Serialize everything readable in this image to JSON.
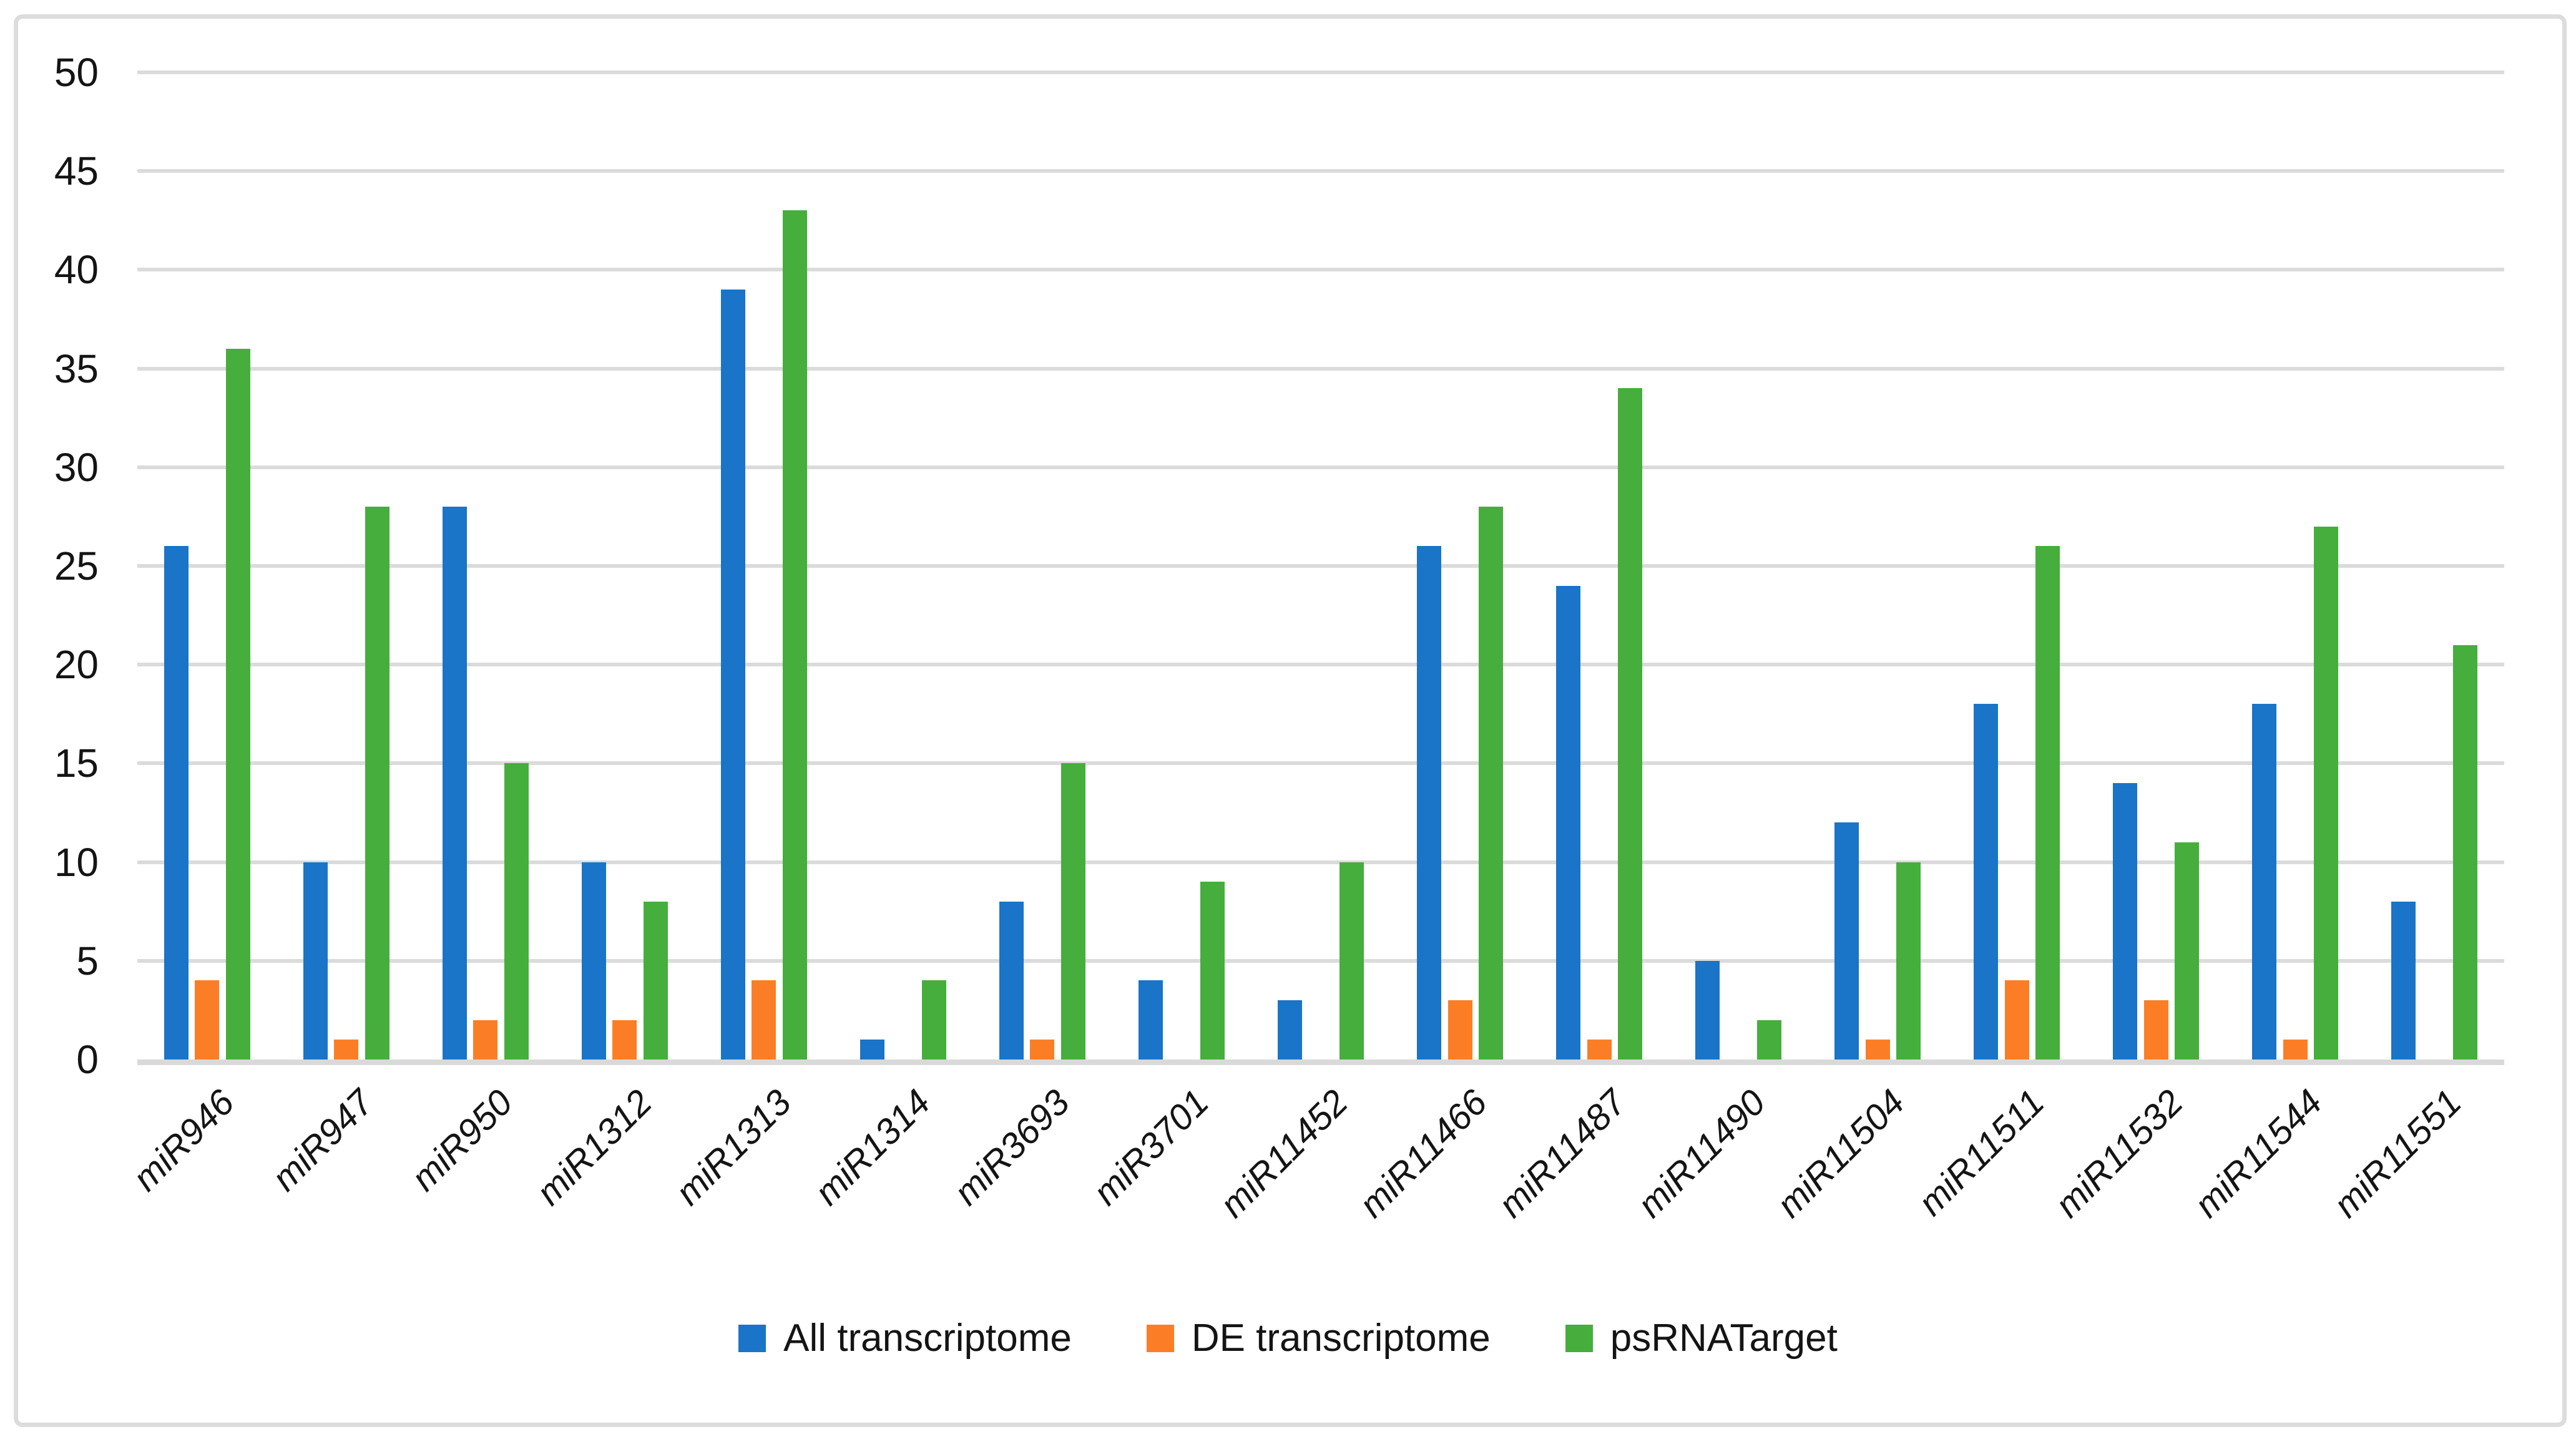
{
  "chart_data": {
    "type": "bar",
    "title": "",
    "xlabel": "",
    "ylabel": "",
    "ylim": [
      0,
      50
    ],
    "ytick_step": 5,
    "yticks": [
      0,
      5,
      10,
      15,
      20,
      25,
      30,
      35,
      40,
      45,
      50
    ],
    "grid": true,
    "legend_position": "bottom",
    "categories": [
      "miR946",
      "miR947",
      "miR950",
      "miR1312",
      "miR1313",
      "miR1314",
      "miR3693",
      "miR3701",
      "miR11452",
      "miR11466",
      "miR11487",
      "miR11490",
      "miR11504",
      "miR11511",
      "miR11532",
      "miR11544",
      "miR11551"
    ],
    "series": [
      {
        "name": "All transcriptome",
        "color": "#1A74C7",
        "values": [
          26,
          10,
          28,
          10,
          39,
          1,
          8,
          4,
          3,
          26,
          24,
          5,
          12,
          18,
          14,
          18,
          8
        ]
      },
      {
        "name": "DE transcriptome",
        "color": "#FB7E26",
        "values": [
          4,
          1,
          2,
          2,
          4,
          0,
          1,
          0,
          0,
          3,
          1,
          0,
          1,
          4,
          3,
          1,
          0
        ]
      },
      {
        "name": "psRNATarget",
        "color": "#45AE3C",
        "values": [
          36,
          28,
          15,
          8,
          43,
          4,
          15,
          9,
          10,
          28,
          34,
          2,
          10,
          26,
          11,
          27,
          21
        ]
      }
    ]
  },
  "style_colors": {
    "gridline": "#DBDBDB",
    "axis_line": "#D9D9D9",
    "frame_border": "#DCDCDC",
    "text": "#141414",
    "background": "#FFFFFF"
  }
}
